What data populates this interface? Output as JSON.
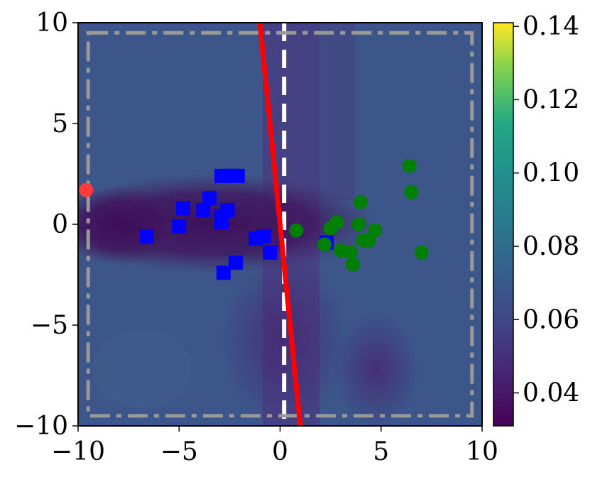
{
  "chart_data": {
    "type": "scatter",
    "title": "",
    "xlabel": "",
    "ylabel": "",
    "xlim": [
      -10,
      10
    ],
    "ylim": [
      -10,
      10
    ],
    "x_ticks": [
      -10,
      -5,
      0,
      5,
      10
    ],
    "y_ticks": [
      -10,
      -5,
      0,
      5,
      10
    ],
    "x_tick_labels": [
      "−10",
      "−5",
      "0",
      "5",
      "10"
    ],
    "y_tick_labels": [
      "−10",
      "−5",
      "0",
      "5",
      "10"
    ],
    "grid": false,
    "background_heatmap": {
      "colormap": "viridis",
      "description_levels": "dark region near y=0 left of x=0, lighter elsewhere"
    },
    "colorbar": {
      "range": [
        0.031,
        0.141
      ],
      "ticks": [
        0.04,
        0.06,
        0.08,
        0.1,
        0.12,
        0.14
      ],
      "tick_labels": [
        "0.04",
        "0.06",
        "0.08",
        "0.10",
        "0.12",
        "0.14"
      ]
    },
    "series": [
      {
        "marker": "square",
        "color": "#0000ff",
        "points": [
          [
            -6.6,
            -0.6
          ],
          [
            -5.0,
            -0.1
          ],
          [
            -4.8,
            0.8
          ],
          [
            -3.8,
            0.7
          ],
          [
            -3.5,
            1.3
          ],
          [
            -2.9,
            2.4
          ],
          [
            -2.5,
            2.4
          ],
          [
            -2.1,
            2.4
          ],
          [
            -2.6,
            0.7
          ],
          [
            -2.9,
            0.4
          ],
          [
            -2.9,
            0.1
          ],
          [
            -1.2,
            -0.7
          ],
          [
            -0.8,
            -0.6
          ],
          [
            -0.5,
            -1.4
          ],
          [
            -2.2,
            -1.9
          ],
          [
            -2.8,
            -2.4
          ],
          [
            2.3,
            -0.9
          ]
        ]
      },
      {
        "marker": "circle",
        "color": "#008000",
        "points": [
          [
            0.8,
            -0.3
          ],
          [
            2.2,
            -1.0
          ],
          [
            2.5,
            -0.2
          ],
          [
            2.8,
            0.1
          ],
          [
            3.0,
            -1.3
          ],
          [
            3.5,
            -1.4
          ],
          [
            3.6,
            -2.0
          ],
          [
            3.9,
            0.0
          ],
          [
            4.1,
            -0.8
          ],
          [
            4.4,
            -0.8
          ],
          [
            4.0,
            1.1
          ],
          [
            4.7,
            -0.3
          ],
          [
            6.4,
            2.9
          ],
          [
            6.5,
            1.6
          ],
          [
            7.0,
            -1.4
          ]
        ]
      },
      {
        "marker": "circle",
        "color": "#ff3b3b",
        "points": [
          [
            -9.6,
            1.7
          ]
        ]
      }
    ],
    "lines": [
      {
        "style": "solid",
        "color": "#ff0000",
        "from": [
          -1.0,
          10.0
        ],
        "to": [
          1.0,
          -10.0
        ]
      },
      {
        "style": "dashed",
        "color": "#ffffff",
        "from": [
          0.2,
          10.0
        ],
        "to": [
          0.2,
          -10.0
        ]
      },
      {
        "style": "dashdot",
        "color": "#999999",
        "rect": [
          -9.5,
          9.5,
          -9.5,
          9.5
        ]
      }
    ]
  }
}
